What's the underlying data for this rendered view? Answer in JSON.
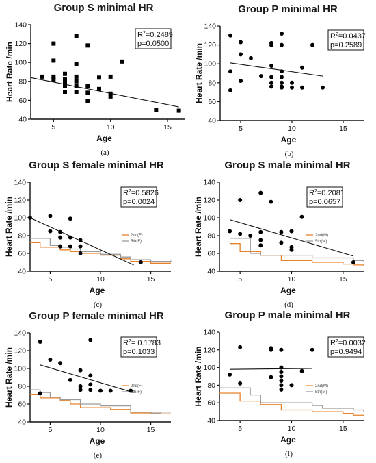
{
  "chart_data": [
    {
      "panel": "(a)",
      "type": "scatter",
      "title": "Group S minimal HR",
      "xlabel": "Age",
      "ylabel": "Heart Rate /min",
      "xlim": [
        3,
        16.5
      ],
      "ylim": [
        40,
        140
      ],
      "xticks": [
        5,
        10,
        15
      ],
      "yticks": [
        40,
        60,
        80,
        100,
        120,
        140
      ],
      "marker": "square",
      "stats": {
        "r2_label": "R",
        "r2_value": "=0.2489",
        "p_text": "p=0.0500"
      },
      "points": [
        [
          4,
          85
        ],
        [
          5,
          120
        ],
        [
          5,
          102
        ],
        [
          5,
          85
        ],
        [
          5,
          82
        ],
        [
          6,
          88
        ],
        [
          6,
          82
        ],
        [
          6,
          78
        ],
        [
          6,
          75
        ],
        [
          6,
          69
        ],
        [
          7,
          128
        ],
        [
          7,
          98
        ],
        [
          7,
          85
        ],
        [
          7,
          80
        ],
        [
          7,
          75
        ],
        [
          7,
          69
        ],
        [
          8,
          118
        ],
        [
          8,
          75
        ],
        [
          8,
          68
        ],
        [
          8,
          59
        ],
        [
          9,
          84
        ],
        [
          9,
          72
        ],
        [
          10,
          85
        ],
        [
          10,
          67
        ],
        [
          10,
          64
        ],
        [
          11,
          101
        ],
        [
          14,
          50
        ],
        [
          16,
          49
        ]
      ],
      "trend": [
        [
          3,
          84
        ],
        [
          16,
          53
        ]
      ],
      "series": []
    },
    {
      "panel": "(b)",
      "type": "scatter",
      "title": "Group P minimal HR",
      "xlabel": "Age",
      "ylabel": "Heart Rate /min",
      "xlim": [
        3,
        17
      ],
      "ylim": [
        40,
        140
      ],
      "xticks": [
        5,
        10,
        15
      ],
      "yticks": [
        40,
        60,
        80,
        100,
        120,
        140
      ],
      "marker": "circle",
      "stats": {
        "r2_label": "R",
        "r2_value": "=0.0437",
        "p_text": "p=0.2589"
      },
      "points": [
        [
          4,
          130
        ],
        [
          4,
          92
        ],
        [
          4,
          72
        ],
        [
          5,
          123
        ],
        [
          5,
          110
        ],
        [
          5,
          82
        ],
        [
          6,
          106
        ],
        [
          7,
          87
        ],
        [
          8,
          122
        ],
        [
          8,
          120
        ],
        [
          8,
          98
        ],
        [
          8,
          86
        ],
        [
          8,
          80
        ],
        [
          8,
          76
        ],
        [
          9,
          132
        ],
        [
          9,
          120
        ],
        [
          9,
          92
        ],
        [
          9,
          86
        ],
        [
          9,
          80
        ],
        [
          9,
          76
        ],
        [
          9,
          75
        ],
        [
          10,
          80
        ],
        [
          10,
          75
        ],
        [
          11,
          96
        ],
        [
          11,
          75
        ],
        [
          12,
          120
        ],
        [
          13,
          75
        ]
      ],
      "trend": [
        [
          4,
          101
        ],
        [
          13,
          87
        ]
      ],
      "series": []
    },
    {
      "panel": "(c)",
      "type": "scatter",
      "title": "Group S female minimal HR",
      "xlabel": "Age",
      "ylabel": "Heart Rate /min",
      "xlim": [
        3,
        17
      ],
      "ylim": [
        40,
        140
      ],
      "xticks": [
        5,
        10,
        15
      ],
      "yticks": [
        40,
        60,
        80,
        100,
        120,
        140
      ],
      "marker": "circle",
      "stats": {
        "r2_label": "R",
        "r2_value": "=0.5826",
        "p_text": "p=0.0024"
      },
      "points": [
        [
          3,
          100
        ],
        [
          5,
          102
        ],
        [
          5,
          85
        ],
        [
          6,
          84
        ],
        [
          6,
          78
        ],
        [
          6,
          68
        ],
        [
          7,
          99
        ],
        [
          7,
          78
        ],
        [
          7,
          68
        ],
        [
          8,
          75
        ],
        [
          8,
          68
        ],
        [
          8,
          60
        ],
        [
          14,
          50
        ]
      ],
      "trend": [
        [
          3,
          100
        ],
        [
          13.3,
          47
        ]
      ],
      "series": [
        {
          "name": "2nd(F)",
          "color": "#e8822a",
          "steps": [
            [
              3,
              72
            ],
            [
              4,
              67
            ],
            [
              6,
              64
            ],
            [
              7,
              62
            ],
            [
              8,
              60
            ],
            [
              10,
              58
            ],
            [
              12,
              54
            ],
            [
              13,
              51
            ],
            [
              15,
              49
            ],
            [
              17,
              49
            ]
          ]
        },
        {
          "name": "5th(F)",
          "color": "#9a9a9a",
          "steps": [
            [
              3,
              77
            ],
            [
              5,
              69
            ],
            [
              6,
              67
            ],
            [
              7,
              65
            ],
            [
              8,
              62
            ],
            [
              10,
              59
            ],
            [
              12,
              56
            ],
            [
              13,
              53
            ],
            [
              15,
              51
            ],
            [
              17,
              52
            ]
          ]
        }
      ]
    },
    {
      "panel": "(d)",
      "type": "scatter",
      "title": "Group S male minimal HR",
      "xlabel": "Age",
      "ylabel": "Heart Rate /min",
      "xlim": [
        3,
        17
      ],
      "ylim": [
        40,
        140
      ],
      "xticks": [
        5,
        10,
        15
      ],
      "yticks": [
        40,
        60,
        80,
        100,
        120,
        140
      ],
      "marker": "circle",
      "stats": {
        "r2_label": "R",
        "r2_value": "=0.2081",
        "p_text": "p=0.0657"
      },
      "points": [
        [
          4,
          85
        ],
        [
          5,
          120
        ],
        [
          5,
          82
        ],
        [
          6,
          80
        ],
        [
          7,
          128
        ],
        [
          7,
          84
        ],
        [
          7,
          75
        ],
        [
          7,
          69
        ],
        [
          8,
          118
        ],
        [
          9,
          84
        ],
        [
          9,
          72
        ],
        [
          10,
          85
        ],
        [
          10,
          67
        ],
        [
          10,
          64
        ],
        [
          11,
          101
        ],
        [
          16,
          50
        ]
      ],
      "trend": [
        [
          4,
          98
        ],
        [
          16,
          57
        ]
      ],
      "series": [
        {
          "name": "2nd(M)",
          "color": "#e8822a",
          "steps": [
            [
              4,
              71
            ],
            [
              5,
              62
            ],
            [
              6,
              62
            ],
            [
              7,
              58
            ],
            [
              9,
              52
            ],
            [
              12,
              50
            ],
            [
              15,
              48
            ],
            [
              16,
              47
            ],
            [
              17,
              46
            ]
          ]
        },
        {
          "name": "5th(M)",
          "color": "#9a9a9a",
          "steps": [
            [
              4,
              77
            ],
            [
              6,
              60
            ],
            [
              7,
              58
            ],
            [
              9,
              58
            ],
            [
              12,
              55
            ],
            [
              16,
              52
            ],
            [
              17,
              51
            ]
          ]
        }
      ]
    },
    {
      "panel": "(e)",
      "type": "scatter",
      "title": "Group P female minimal HR",
      "xlabel": "Age",
      "ylabel": "Heart Rate /min",
      "xlim": [
        3,
        17
      ],
      "ylim": [
        40,
        140
      ],
      "xticks": [
        5,
        10,
        15
      ],
      "yticks": [
        40,
        60,
        80,
        100,
        120,
        140
      ],
      "marker": "circle",
      "stats": {
        "r2_label": "R",
        "r2_value": "= 0.1783",
        "p_text": "p=0.1033"
      },
      "points": [
        [
          4,
          130
        ],
        [
          4,
          72
        ],
        [
          5,
          110
        ],
        [
          6,
          106
        ],
        [
          7,
          87
        ],
        [
          8,
          98
        ],
        [
          8,
          80
        ],
        [
          8,
          76
        ],
        [
          9,
          132
        ],
        [
          9,
          92
        ],
        [
          9,
          82
        ],
        [
          9,
          76
        ],
        [
          10,
          75
        ],
        [
          11,
          75
        ],
        [
          13,
          75
        ]
      ],
      "trend": [
        [
          4,
          104
        ],
        [
          13,
          74
        ]
      ],
      "series": [
        {
          "name": "2nd(F)",
          "color": "#e8822a",
          "steps": [
            [
              3,
              71
            ],
            [
              4,
              67
            ],
            [
              6,
              64
            ],
            [
              7,
              60
            ],
            [
              8,
              56
            ],
            [
              10,
              56
            ],
            [
              11,
              54
            ],
            [
              13,
              50
            ],
            [
              15,
              49
            ],
            [
              17,
              49
            ]
          ]
        },
        {
          "name": "5th(F)",
          "color": "#9a9a9a",
          "steps": [
            [
              3,
              76
            ],
            [
              4,
              73
            ],
            [
              5,
              68
            ],
            [
              6,
              65
            ],
            [
              8,
              60
            ],
            [
              10,
              58
            ],
            [
              11,
              58
            ],
            [
              13,
              51
            ],
            [
              15,
              50
            ],
            [
              16,
              51
            ],
            [
              17,
              51
            ]
          ]
        }
      ]
    },
    {
      "panel": "(f)",
      "type": "scatter",
      "title": "Group P male minimal HR",
      "xlabel": "Age",
      "ylabel": "Heart Rate /min",
      "xlim": [
        3,
        17
      ],
      "ylim": [
        40,
        140
      ],
      "xticks": [
        5,
        10,
        15
      ],
      "yticks": [
        40,
        60,
        80,
        100,
        120,
        140
      ],
      "marker": "circle",
      "stats": {
        "r2_label": "R",
        "r2_value": "=0.0032",
        "p_text": "p=0.9494"
      },
      "points": [
        [
          4,
          92
        ],
        [
          5,
          123
        ],
        [
          5,
          82
        ],
        [
          8,
          122
        ],
        [
          8,
          120
        ],
        [
          8,
          89
        ],
        [
          9,
          120
        ],
        [
          9,
          100
        ],
        [
          9,
          95
        ],
        [
          9,
          90
        ],
        [
          9,
          85
        ],
        [
          9,
          80
        ],
        [
          9,
          75
        ],
        [
          10,
          80
        ],
        [
          11,
          96
        ],
        [
          12,
          120
        ]
      ],
      "trend": [
        [
          4,
          98
        ],
        [
          12,
          99
        ]
      ],
      "series": [
        {
          "name": "2nd(M)",
          "color": "#e8822a",
          "steps": [
            [
              3,
              71
            ],
            [
              4,
              71
            ],
            [
              5,
              62
            ],
            [
              6,
              62
            ],
            [
              7,
              58
            ],
            [
              9,
              52
            ],
            [
              12,
              50
            ],
            [
              15,
              48
            ],
            [
              16,
              46
            ],
            [
              17,
              46
            ]
          ]
        },
        {
          "name": "5th(M)",
          "color": "#9a9a9a",
          "steps": [
            [
              3,
              77
            ],
            [
              5,
              77
            ],
            [
              6,
              69
            ],
            [
              7,
              60
            ],
            [
              9,
              60
            ],
            [
              12,
              57
            ],
            [
              13,
              54
            ],
            [
              16,
              52
            ],
            [
              17,
              50
            ]
          ]
        }
      ]
    }
  ]
}
